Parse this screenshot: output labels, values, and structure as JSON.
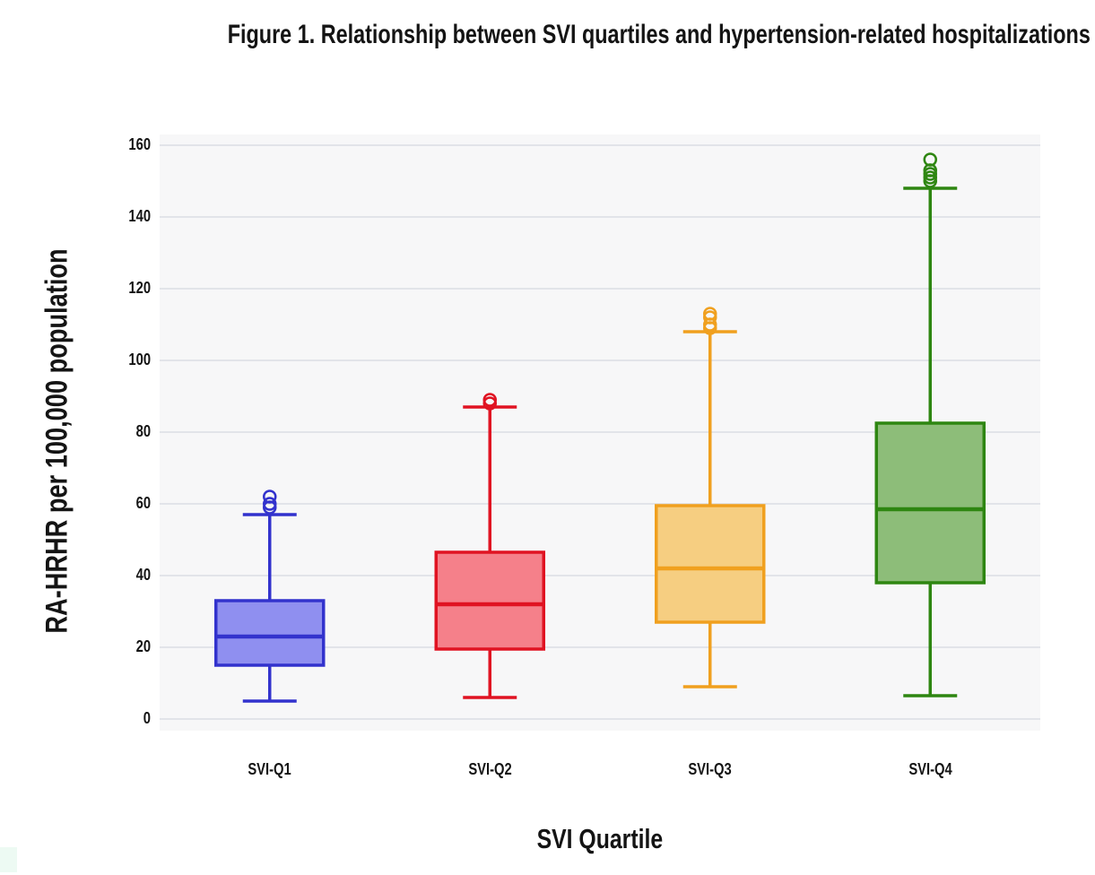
{
  "page": {
    "background": "#ffffff",
    "corner_swatch_color": "#edfaf3"
  },
  "chart_data": {
    "type": "box",
    "title": "Figure 1. Relationship between SVI quartiles and hypertension-related hospitalizations",
    "xlabel": "SVI Quartile",
    "ylabel": "RA-HRHR per 100,000 population",
    "ylim": [
      0,
      165
    ],
    "yticks": [
      0,
      20,
      40,
      60,
      80,
      100,
      120,
      140,
      160
    ],
    "grid": true,
    "grid_color": "#e2e4e9",
    "plot_background": "#f7f7f8",
    "legend": "none",
    "categories": [
      "SVI-Q1",
      "SVI-Q2",
      "SVI-Q3",
      "SVI-Q4"
    ],
    "series": [
      {
        "name": "SVI-Q1",
        "min": 5,
        "q1": 15,
        "median": 23,
        "q3": 33,
        "max": 57,
        "outliers": [
          59,
          60,
          62
        ],
        "fill": "#8f8ff0",
        "stroke": "#3232cd"
      },
      {
        "name": "SVI-Q2",
        "min": 6,
        "q1": 19.5,
        "median": 32,
        "q3": 46.5,
        "max": 87,
        "outliers": [
          88,
          89
        ],
        "fill": "#f5808a",
        "stroke": "#e01322"
      },
      {
        "name": "SVI-Q3",
        "min": 9,
        "q1": 27,
        "median": 42,
        "q3": 59.5,
        "max": 108,
        "outliers": [
          109,
          110,
          112,
          113
        ],
        "fill": "#f6ce81",
        "stroke": "#f0a01f"
      },
      {
        "name": "SVI-Q4",
        "min": 6.5,
        "q1": 38,
        "median": 58.5,
        "q3": 82.5,
        "max": 148,
        "outliers": [
          150,
          151,
          152,
          153,
          156
        ],
        "fill": "#8dbd79",
        "stroke": "#2e8611"
      }
    ]
  }
}
